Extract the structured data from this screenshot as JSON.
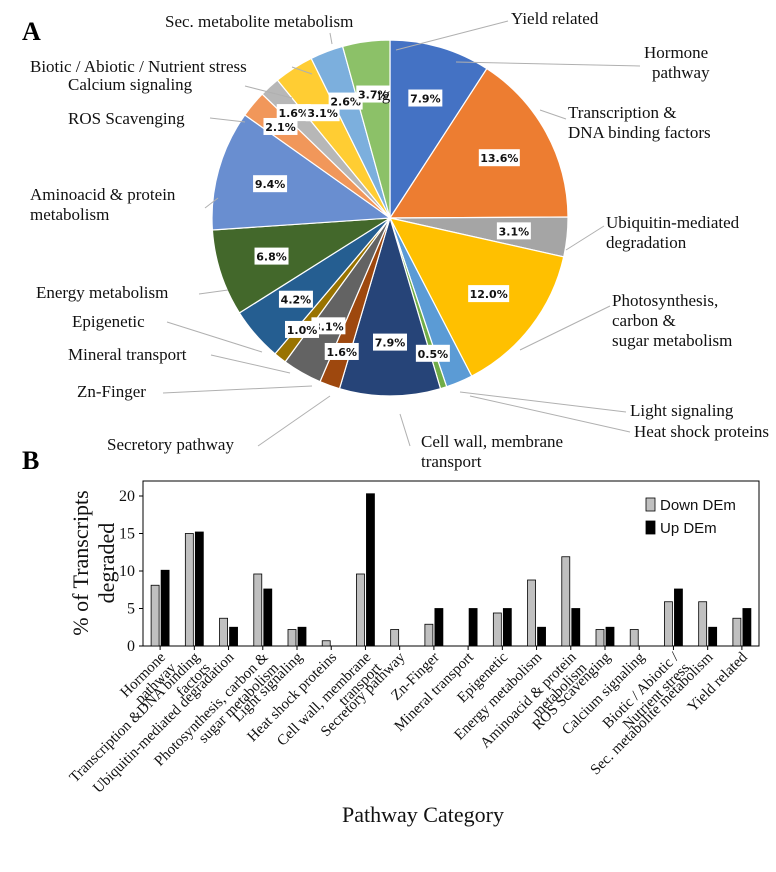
{
  "chart_data": [
    {
      "type": "pie",
      "panel": "A",
      "slices": [
        {
          "label": "Hormone pathway",
          "value": 7.9,
          "pct_text": "7.9%",
          "color": "#4472C4"
        },
        {
          "label": "Transcription & DNA binding factors",
          "value": 13.6,
          "pct_text": "13.6%",
          "color": "#ED7D31"
        },
        {
          "label": "Ubiquitin-mediated degradation",
          "value": 3.1,
          "pct_text": "3.1%",
          "color": "#A5A5A5"
        },
        {
          "label": "Photosynthesis, carbon & sugar metabolism",
          "value": 12.0,
          "pct_text": "12.0%",
          "color": "#FFC000"
        },
        {
          "label": "Light signaling",
          "value": 2.1,
          "pct_text": "",
          "color": "#5B9BD5"
        },
        {
          "label": "Heat shock proteins",
          "value": 0.5,
          "pct_text": "0.5%",
          "color": "#70AD47"
        },
        {
          "label": "Cell wall, membrane transport",
          "value": 7.9,
          "pct_text": "7.9%",
          "color": "#264478"
        },
        {
          "label": "Secretory pathway",
          "value": 1.6,
          "pct_text": "1.6%",
          "color": "#9E480E"
        },
        {
          "label": "Zn-Finger",
          "value": 3.1,
          "pct_text": "3.1%",
          "color": "#636363"
        },
        {
          "label": "Mineral transport",
          "value": 1.0,
          "pct_text": "1.0%",
          "color": "#997300"
        },
        {
          "label": "Epigenetic",
          "value": 4.2,
          "pct_text": "4.2%",
          "color": "#255E91"
        },
        {
          "label": "Energy metabolism",
          "value": 6.8,
          "pct_text": "6.8%",
          "color": "#43682B"
        },
        {
          "label": "Aminoacid & protein metabolism",
          "value": 9.4,
          "pct_text": "9.4%",
          "color": "#698ED0"
        },
        {
          "label": "ROS Scavenging",
          "value": 2.1,
          "pct_text": "2.1%",
          "color": "#F1975A"
        },
        {
          "label": "Calcium signaling",
          "value": 1.6,
          "pct_text": "1.6%",
          "color": "#B7B7B7"
        },
        {
          "label": "Biotic / Abiotic / Nutrient stress",
          "value": 3.1,
          "pct_text": "3.1%",
          "color": "#FFCD33"
        },
        {
          "label": "Sec. metabolite metabolism",
          "value": 2.6,
          "pct_text": "2.6%",
          "color": "#7CAFDD"
        },
        {
          "label": "Yield related",
          "value": 3.7,
          "pct_text": "3.7%",
          "color": "#8CC168"
        }
      ],
      "stray_text": "ıg",
      "outer_labels": [
        {
          "lines": [
            "Sec. metabolite metabolism"
          ]
        },
        {
          "lines": [
            "Yield related"
          ]
        },
        {
          "lines": [
            "Hormone",
            "pathway"
          ]
        },
        {
          "lines": [
            "Biotic / Abiotic / Nutrient stress"
          ]
        },
        {
          "lines": [
            "Calcium signaling"
          ]
        },
        {
          "lines": [
            "Transcription &",
            "DNA binding factors"
          ]
        },
        {
          "lines": [
            "ROS Scavenging"
          ]
        },
        {
          "lines": [
            "Ubiquitin-mediated",
            "degradation"
          ]
        },
        {
          "lines": [
            "Aminoacid & protein",
            "metabolism"
          ]
        },
        {
          "lines": [
            "Photosynthesis,",
            "carbon &",
            "sugar metabolism"
          ]
        },
        {
          "lines": [
            "Energy metabolism"
          ]
        },
        {
          "lines": [
            "Epigenetic"
          ]
        },
        {
          "lines": [
            "Mineral transport"
          ]
        },
        {
          "lines": [
            "Zn-Finger"
          ]
        },
        {
          "lines": [
            "Light signaling"
          ]
        },
        {
          "lines": [
            "Heat shock proteins"
          ]
        },
        {
          "lines": [
            "Secretory pathway"
          ]
        },
        {
          "lines": [
            "Cell wall, membrane",
            "transport"
          ]
        }
      ]
    },
    {
      "type": "bar",
      "panel": "B",
      "ylabel_lines": [
        "% of Transcripts",
        "degraded"
      ],
      "xlabel": "Pathway Category",
      "ylim": [
        0,
        22
      ],
      "yticks": [
        0,
        5,
        10,
        15,
        20
      ],
      "grid": false,
      "legend_position": "top-right",
      "categories": [
        [
          "Hormone",
          "pathway"
        ],
        [
          "Transcription &DNA binding",
          "factors"
        ],
        [
          "Ubiquitin-mediated degradation"
        ],
        [
          "Photosynthesis, carbon &",
          "sugar metabolism"
        ],
        [
          "Light signaling"
        ],
        [
          "Heat shock proteins"
        ],
        [
          "Cell wall, membrane",
          "transport"
        ],
        [
          "Secretory pathway"
        ],
        [
          "Zn-Finger"
        ],
        [
          "Mineral transport"
        ],
        [
          "Epigenetic"
        ],
        [
          "Energy metabolism"
        ],
        [
          "Aminoacid & protein",
          "metabolism"
        ],
        [
          "ROS Scavenging"
        ],
        [
          "Calcium signaling"
        ],
        [
          "Biotic / Abiotic /",
          "Nutrient stress"
        ],
        [
          "Sec. metabolite metabolism"
        ],
        [
          "Yield related"
        ]
      ],
      "series": [
        {
          "name": "Down DEm",
          "color": "#C0C0C0",
          "values": [
            8.1,
            15.0,
            3.7,
            9.6,
            2.2,
            0.7,
            9.6,
            2.2,
            2.9,
            0,
            4.4,
            8.8,
            11.9,
            2.2,
            2.2,
            5.9,
            5.9,
            3.7
          ]
        },
        {
          "name": "Up DEm",
          "color": "#000000",
          "values": [
            10.1,
            15.2,
            2.5,
            7.6,
            2.5,
            0,
            20.3,
            0,
            5.0,
            5.0,
            5.0,
            2.5,
            5.0,
            2.5,
            0,
            7.6,
            2.5,
            5.0
          ]
        }
      ]
    }
  ]
}
